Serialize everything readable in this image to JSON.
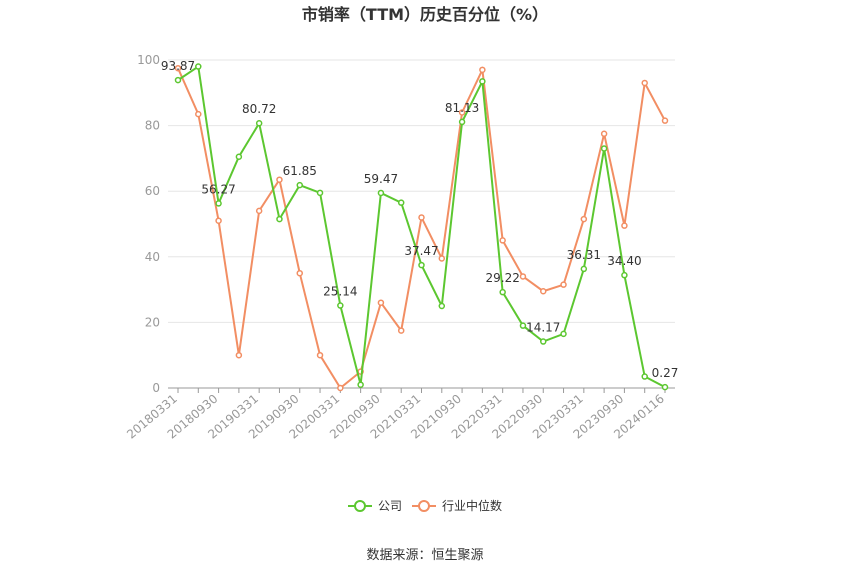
{
  "chart_data": {
    "type": "line",
    "title": "市销率（TTM）历史百分位（%）",
    "source": "数据来源：恒生聚源",
    "ylim": [
      0,
      100
    ],
    "yticks": [
      0,
      20,
      40,
      60,
      80,
      100
    ],
    "grid": true,
    "legend_position": "bottom",
    "x": [
      "20180331",
      "20180630",
      "20180930",
      "20181231",
      "20190331",
      "20190630",
      "20190930",
      "20191231",
      "20200331",
      "20200630",
      "20200930",
      "20201231",
      "20210331",
      "20210630",
      "20210930",
      "20211231",
      "20220331",
      "20220630",
      "20220930",
      "20221231",
      "20230331",
      "20230630",
      "20230930",
      "20231231",
      "20240116"
    ],
    "x_tick_labels": [
      "20180331",
      "20180930",
      "20190331",
      "20190930",
      "20200331",
      "20200930",
      "20210331",
      "20210930",
      "20220331",
      "20220930",
      "20230331",
      "20230930",
      "20240116"
    ],
    "series": [
      {
        "name": "公司",
        "color": "#5cc730",
        "values": [
          93.87,
          98,
          56.27,
          70.5,
          80.72,
          51.5,
          61.85,
          59.5,
          25.14,
          1,
          59.47,
          56.5,
          37.47,
          25,
          81.13,
          93.5,
          29.22,
          19,
          14.17,
          16.5,
          36.31,
          73,
          34.4,
          3.5,
          0.27
        ],
        "data_labels": [
          {
            "index": 0,
            "text": "93.87"
          },
          {
            "index": 2,
            "text": "56.27"
          },
          {
            "index": 4,
            "text": "80.72"
          },
          {
            "index": 6,
            "text": "61.85"
          },
          {
            "index": 8,
            "text": "25.14"
          },
          {
            "index": 10,
            "text": "59.47"
          },
          {
            "index": 12,
            "text": "37.47"
          },
          {
            "index": 14,
            "text": "81.13"
          },
          {
            "index": 16,
            "text": "29.22"
          },
          {
            "index": 18,
            "text": "14.17"
          },
          {
            "index": 20,
            "text": "36.31"
          },
          {
            "index": 22,
            "text": "34.40"
          },
          {
            "index": 24,
            "text": "0.27"
          }
        ]
      },
      {
        "name": "行业中位数",
        "color": "#f28e63",
        "values": [
          97.5,
          83.5,
          51,
          10,
          54,
          63.5,
          35,
          10,
          0,
          5,
          26,
          17.5,
          52,
          39.5,
          84,
          97,
          45,
          34,
          29.5,
          31.5,
          51.5,
          77.5,
          49.5,
          93,
          81.5
        ]
      }
    ]
  }
}
